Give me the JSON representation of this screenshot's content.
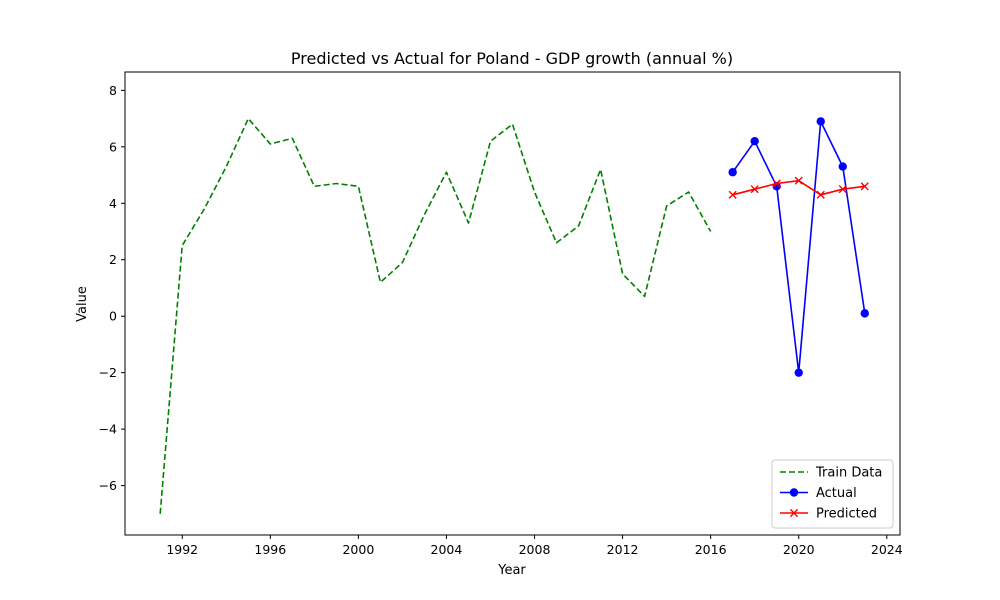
{
  "chart_data": {
    "type": "line",
    "title": "Predicted vs Actual for Poland - GDP growth (annual %)",
    "xlabel": "Year",
    "ylabel": "Value",
    "xlim": [
      1989.4,
      2024.6
    ],
    "ylim": [
      -7.75,
      8.65
    ],
    "xticks": [
      1992,
      1996,
      2000,
      2004,
      2008,
      2012,
      2016,
      2020,
      2024
    ],
    "yticks": [
      -6,
      -4,
      -2,
      0,
      2,
      4,
      6,
      8
    ],
    "xtick_labels": [
      "1992",
      "1996",
      "2000",
      "2004",
      "2008",
      "2012",
      "2016",
      "2020",
      "2024"
    ],
    "ytick_labels": [
      "−6",
      "−4",
      "−2",
      "0",
      "2",
      "4",
      "6",
      "8"
    ],
    "grid": false,
    "legend_position": "lower-right",
    "series": [
      {
        "name": "Train Data",
        "color": "#008000",
        "style": "dashed",
        "marker": "none",
        "x": [
          1991,
          1992,
          1993,
          1994,
          1995,
          1996,
          1997,
          1998,
          1999,
          2000,
          2001,
          2002,
          2003,
          2004,
          2005,
          2006,
          2007,
          2008,
          2009,
          2010,
          2011,
          2012,
          2013,
          2014,
          2015,
          2016
        ],
        "y": [
          -7.0,
          2.5,
          3.8,
          5.3,
          7.0,
          6.1,
          6.3,
          4.6,
          4.7,
          4.6,
          1.2,
          1.9,
          3.6,
          5.1,
          3.3,
          6.2,
          6.8,
          4.4,
          2.6,
          3.2,
          5.2,
          1.5,
          0.7,
          3.9,
          4.4,
          3.0
        ]
      },
      {
        "name": "Actual",
        "color": "#0000ff",
        "style": "solid",
        "marker": "circle",
        "x": [
          2017,
          2018,
          2019,
          2020,
          2021,
          2022,
          2023
        ],
        "y": [
          5.1,
          6.2,
          4.6,
          -2.0,
          6.9,
          5.3,
          0.1
        ]
      },
      {
        "name": "Predicted",
        "color": "#ff0000",
        "style": "solid",
        "marker": "x",
        "x": [
          2017,
          2018,
          2019,
          2020,
          2021,
          2022,
          2023
        ],
        "y": [
          4.3,
          4.5,
          4.7,
          4.8,
          4.3,
          4.5,
          4.6
        ]
      }
    ]
  }
}
